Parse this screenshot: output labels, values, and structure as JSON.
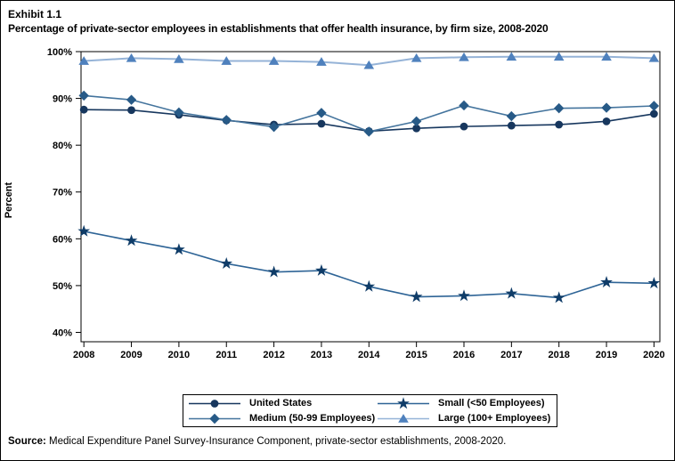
{
  "title": {
    "exhibit": "Exhibit 1.1",
    "text": "Percentage of private-sector employees in establishments that offer health insurance, by firm size, 2008-2020"
  },
  "source": {
    "label": "Source:",
    "text": " Medical Expenditure Panel Survey-Insurance Component, private-sector establishments, 2008-2020."
  },
  "chart_data": {
    "type": "line",
    "title": "Percentage of private-sector employees in establishments that offer health insurance, by firm size, 2008-2020",
    "xlabel": "",
    "ylabel": "Percent",
    "x": [
      2008,
      2009,
      2010,
      2011,
      2012,
      2013,
      2014,
      2015,
      2016,
      2017,
      2018,
      2019,
      2020
    ],
    "ylim": [
      38,
      100
    ],
    "yticks": [
      100,
      90,
      80,
      70,
      60,
      50,
      40
    ],
    "ytick_labels": [
      "100%",
      "90%",
      "80%",
      "70%",
      "60%",
      "50%",
      "40%"
    ],
    "grid": false,
    "legend_position": "bottom",
    "series": [
      {
        "name": "United States",
        "marker": "circle",
        "marker_color": "#17375E",
        "line_color": "#17375E",
        "values": [
          87.6,
          87.5,
          86.5,
          85.3,
          84.4,
          84.6,
          83.0,
          83.6,
          84.0,
          84.2,
          84.4,
          85.1,
          86.7
        ]
      },
      {
        "name": "Medium (50-99 Employees)",
        "marker": "diamond",
        "marker_color": "#275A87",
        "line_color": "#44749D",
        "values": [
          90.6,
          89.7,
          87.0,
          85.4,
          83.9,
          86.9,
          82.9,
          85.1,
          88.5,
          86.2,
          87.9,
          88.0,
          88.4
        ]
      },
      {
        "name": "Small (<50 Employees)",
        "marker": "star",
        "marker_color": "#0F3C68",
        "line_color": "#2E6496",
        "values": [
          61.6,
          59.6,
          57.7,
          54.7,
          52.9,
          53.2,
          49.8,
          47.6,
          47.8,
          48.3,
          47.4,
          50.7,
          50.5
        ]
      },
      {
        "name": "Large (100+ Employees)",
        "marker": "triangle",
        "marker_color": "#4F81BD",
        "line_color": "#95B3D7",
        "values": [
          98.0,
          98.6,
          98.4,
          98.0,
          98.0,
          97.8,
          97.1,
          98.6,
          98.8,
          98.9,
          98.9,
          98.9,
          98.6
        ]
      }
    ],
    "legend_grid": [
      [
        0,
        2
      ],
      [
        1,
        3
      ]
    ]
  }
}
